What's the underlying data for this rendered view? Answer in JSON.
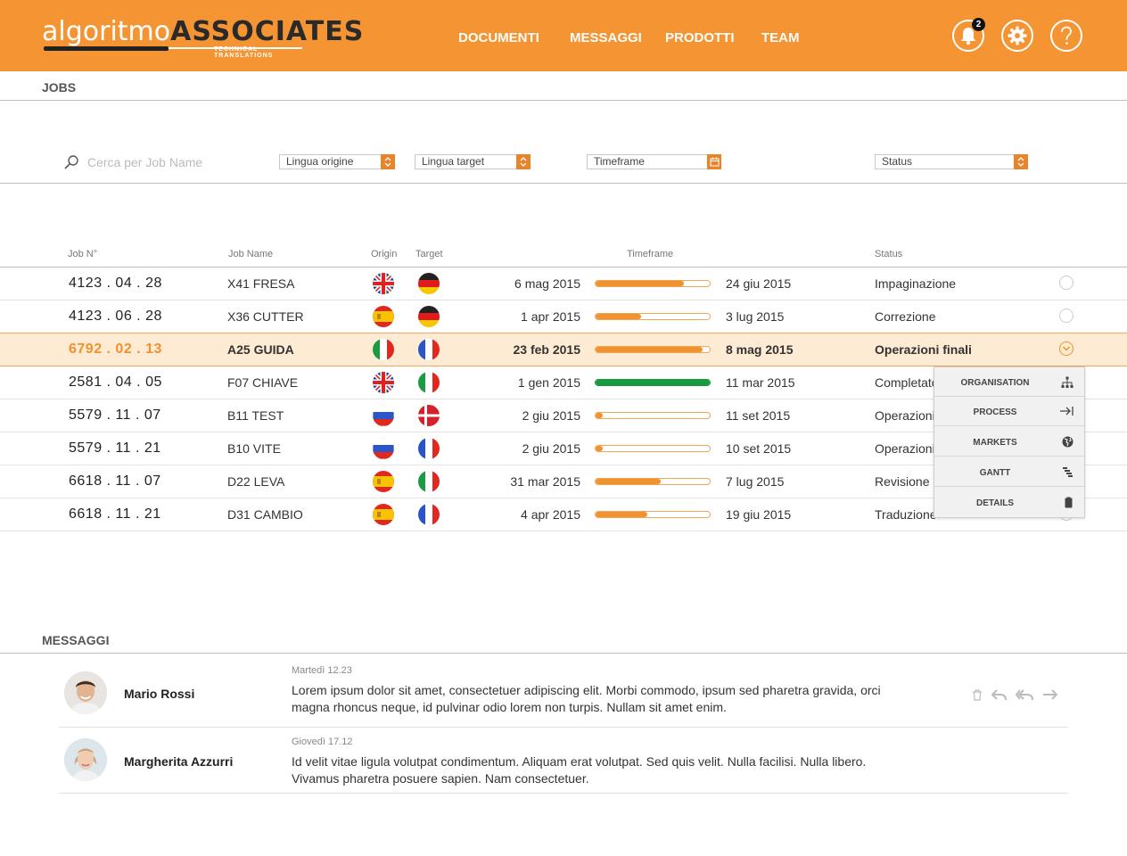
{
  "header": {
    "logo": {
      "part1": "algoritmo",
      "part2": "ASSOCIATES",
      "tagline": "TECHNICAL TRANSLATIONS"
    },
    "nav": [
      "DOCUMENTI",
      "MESSAGGI",
      "PRODOTTI",
      "TEAM"
    ],
    "notifications_count": "2",
    "icons": [
      "bell-icon",
      "gear-icon",
      "help-icon"
    ],
    "accent_color": "#f59433"
  },
  "jobs": {
    "title": "JOBS",
    "filters": {
      "search_placeholder": "Cerca per Job Name",
      "origin_label": "Lingua origine",
      "target_label": "Lingua target",
      "timeframe_label": "Timeframe",
      "status_label": "Status"
    },
    "columns": [
      "Job N°",
      "Job Name",
      "Origin",
      "Target",
      "Timeframe",
      "Status"
    ],
    "rows": [
      {
        "job_no": "4123 . 04 . 28",
        "name": "X41 FRESA",
        "origin": "uk",
        "target": "de",
        "start": "6 mag 2015",
        "end": "24 giu 2015",
        "progress": 0.77,
        "color": "#f0922e",
        "status": "Impaginazione"
      },
      {
        "job_no": "4123 . 06 . 28",
        "name": "X36 CUTTER",
        "origin": "es",
        "target": "de",
        "start": "1 apr 2015",
        "end": "3 lug 2015",
        "progress": 0.4,
        "color": "#f0922e",
        "status": "Correzione"
      },
      {
        "job_no": "6792 . 02 . 13",
        "name": "A25 GUIDA",
        "origin": "it",
        "target": "fr",
        "start": "23 feb 2015",
        "end": "8 mag 2015",
        "progress": 0.94,
        "color": "#f0922e",
        "status": "Operazioni finali"
      },
      {
        "job_no": "2581 . 04 . 05",
        "name": "F07 CHIAVE",
        "origin": "uk",
        "target": "it",
        "start": "1 gen 2015",
        "end": "11 mar 2015",
        "progress": 1.0,
        "color": "#179a3e",
        "status": "Completato"
      },
      {
        "job_no": "5579 . 11 . 07",
        "name": "B11 TEST",
        "origin": "ru",
        "target": "dk",
        "start": "2 giu 2015",
        "end": "11 set 2015",
        "progress": 0.06,
        "color": "#f0922e",
        "status": "Operazioni"
      },
      {
        "job_no": "5579 . 11 . 21",
        "name": "B10 VITE",
        "origin": "ru",
        "target": "fr",
        "start": "2 giu 2015",
        "end": "10 set 2015",
        "progress": 0.06,
        "color": "#f0922e",
        "status": "Operazioni"
      },
      {
        "job_no": "6618 . 11 . 07",
        "name": "D22 LEVA",
        "origin": "es",
        "target": "it",
        "start": "31 mar 2015",
        "end": "7 lug 2015",
        "progress": 0.57,
        "color": "#f0922e",
        "status": "Revisione"
      },
      {
        "job_no": "6618 . 11 . 21",
        "name": "D31 CAMBIO",
        "origin": "es",
        "target": "fr",
        "start": "4 apr 2015",
        "end": "19 giu 2015",
        "progress": 0.45,
        "color": "#f0922e",
        "status": "Traduzione"
      }
    ],
    "selected_index": 2,
    "menu": [
      {
        "label": "ORGANISATION",
        "icon": "hierarchy-icon"
      },
      {
        "label": "PROCESS",
        "icon": "arrow-to-line-icon"
      },
      {
        "label": "MARKETS",
        "icon": "globe-icon"
      },
      {
        "label": "GANTT",
        "icon": "gantt-icon"
      },
      {
        "label": "DETAILS",
        "icon": "clipboard-icon"
      }
    ]
  },
  "messages": {
    "title": "MESSAGGI",
    "items": [
      {
        "name": "Mario Rossi",
        "date": "Martedì 12.23",
        "text": "Lorem ipsum dolor sit amet, consectetuer adipiscing elit. Morbi commodo, ipsum sed pharetra gravida, orci magna rhoncus neque, id pulvinar odio lorem non turpis. Nullam sit amet enim."
      },
      {
        "name": "Margherita Azzurri",
        "date": "Giovedì 17.12",
        "text": "Id velit vitae ligula volutpat condimentum. Aliquam erat volutpat. Sed quis velit. Nulla facilisi. Nulla libero. Vivamus pharetra posuere sapien. Nam consectetuer."
      }
    ],
    "actions": [
      "trash-icon",
      "reply-icon",
      "reply-all-icon",
      "forward-icon"
    ]
  }
}
